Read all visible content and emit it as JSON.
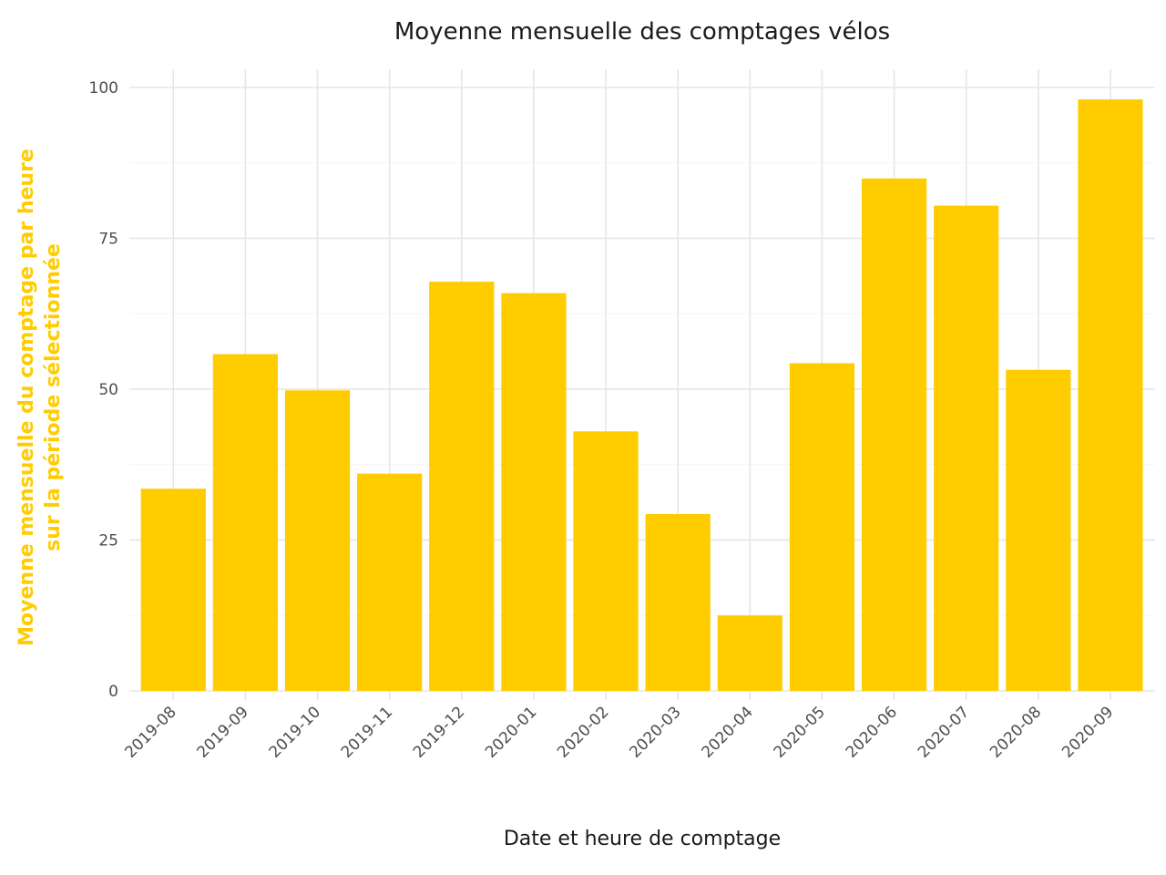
{
  "chart_data": {
    "type": "bar",
    "title": "Moyenne mensuelle des comptages vélos",
    "xlabel": "Date et heure de comptage",
    "ylabel_lines": [
      "Moyenne mensuelle du comptage par heure",
      "sur la période sélectionnée"
    ],
    "categories": [
      "2019-08",
      "2019-09",
      "2019-10",
      "2019-11",
      "2019-12",
      "2020-01",
      "2020-02",
      "2020-03",
      "2020-04",
      "2020-05",
      "2020-06",
      "2020-07",
      "2020-08",
      "2020-09"
    ],
    "values": [
      33.5,
      55.8,
      49.8,
      36.0,
      67.8,
      65.9,
      43.0,
      29.3,
      12.5,
      54.3,
      84.9,
      80.4,
      53.2,
      98.0
    ],
    "ylim": [
      0,
      103
    ],
    "y_ticks": [
      "0",
      "25",
      "50",
      "75",
      "100"
    ],
    "grid": true,
    "bar_color": "#FFCC00",
    "ylabel_color": "#FFCC00"
  }
}
